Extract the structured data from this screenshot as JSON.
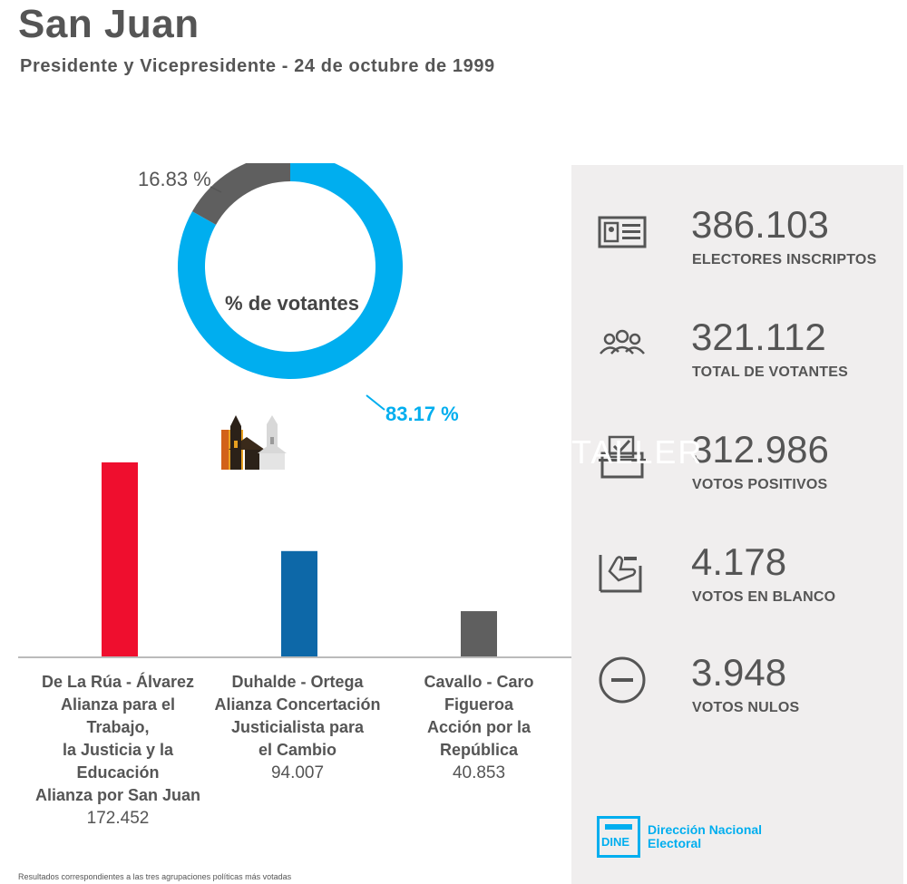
{
  "header": {
    "title": "San Juan",
    "subtitle": "Presidente y Vicepresidente - 24 de octubre de 1999"
  },
  "colors": {
    "blue": "#00aeef",
    "gray": "#5f5f5f",
    "red": "#ef0e2e",
    "darkblue": "#0d68a8",
    "baseline": "#bbbbbb"
  },
  "chart_data": [
    {
      "type": "pie",
      "variant": "donut",
      "center_label": "% de votantes",
      "slices": [
        {
          "label": "83.17 %",
          "value": 83.17,
          "color": "#00aeef"
        },
        {
          "label": "16.83 %",
          "value": 16.83,
          "color": "#5f5f5f"
        }
      ]
    },
    {
      "type": "bar",
      "categories": [
        [
          "De La Rúa - Álvarez",
          "Alianza para el Trabajo,",
          "la Justicia y la Educación",
          "Alianza por San Juan"
        ],
        [
          "Duhalde - Ortega",
          "Alianza Concertación",
          "Justicialista para",
          "el Cambio"
        ],
        [
          "Cavallo - Caro Figueroa",
          "Acción por la República"
        ]
      ],
      "values": [
        172452,
        94007,
        40853
      ],
      "value_labels": [
        "172.452",
        "94.007",
        "40.853"
      ],
      "colors": [
        "#ef0e2e",
        "#0d68a8",
        "#5f5f5f"
      ],
      "ylim": [
        0,
        172452
      ]
    }
  ],
  "watermark": "TALLER",
  "stats": [
    {
      "icon": "id-card-icon",
      "value": "386.103",
      "label": "ELECTORES INSCRIPTOS"
    },
    {
      "icon": "people-icon",
      "value": "321.112",
      "label": "TOTAL DE VOTANTES"
    },
    {
      "icon": "ballot-box-icon",
      "value": "312.986",
      "label": "VOTOS POSITIVOS"
    },
    {
      "icon": "blank-vote-icon",
      "value": "4.178",
      "label": "VOTOS EN BLANCO"
    },
    {
      "icon": "null-vote-icon",
      "value": "3.948",
      "label": "VOTOS NULOS"
    }
  ],
  "logo": {
    "acronym": "DINE",
    "name_line1": "Dirección Nacional",
    "name_line2": "Electoral"
  },
  "footnote": "Resultados correspondientes a las tres agrupaciones políticas más votadas"
}
